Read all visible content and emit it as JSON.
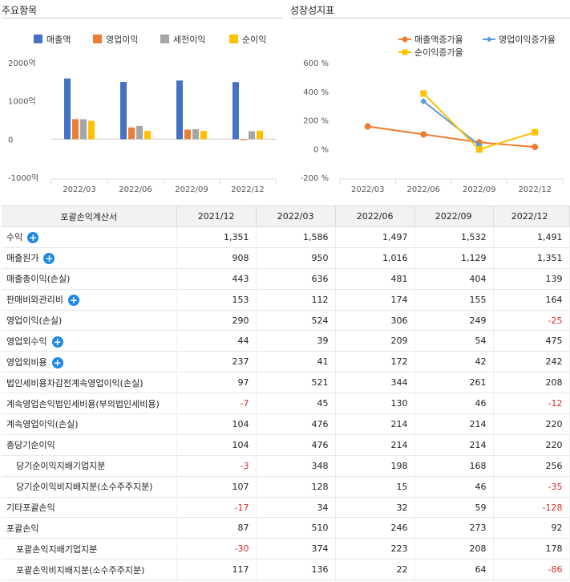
{
  "left_title": "주요항목",
  "right_title": "성장성지표",
  "chart_data": [
    {
      "type": "bar",
      "categories": [
        "2022/03",
        "2022/06",
        "2022/09",
        "2022/12"
      ],
      "series": [
        {
          "name": "매출액",
          "color": "#4472c4",
          "values": [
            1586,
            1497,
            1532,
            1491
          ]
        },
        {
          "name": "영업이익",
          "color": "#ed7d31",
          "values": [
            524,
            306,
            249,
            -25
          ]
        },
        {
          "name": "세전이익",
          "color": "#a5a5a5",
          "values": [
            521,
            344,
            261,
            208
          ]
        },
        {
          "name": "순이익",
          "color": "#ffc000",
          "values": [
            476,
            214,
            214,
            220
          ]
        }
      ],
      "yticks": [
        "2000억",
        "1000억",
        "0",
        "-1000억"
      ],
      "ylim": [
        -1000,
        2000
      ]
    },
    {
      "type": "line",
      "categories": [
        "2022/03",
        "2022/06",
        "2022/09",
        "2022/12"
      ],
      "series": [
        {
          "name": "매출액증가율",
          "color": "#ed7d31",
          "marker": "circle",
          "values": [
            155,
            100,
            45,
            12
          ]
        },
        {
          "name": "영업이익증가율",
          "color": "#5b9bd5",
          "marker": "diamond",
          "values": [
            null,
            330,
            25,
            null
          ]
        },
        {
          "name": "순이익증가율",
          "color": "#ffc000",
          "marker": "square",
          "values": [
            null,
            385,
            -5,
            115
          ]
        }
      ],
      "yticks": [
        "600 %",
        "400 %",
        "200 %",
        "0 %",
        "-200 %"
      ],
      "ylim": [
        -200,
        600
      ]
    }
  ],
  "table": {
    "headers": [
      "포괄손익계산서",
      "2021/12",
      "2022/03",
      "2022/06",
      "2022/09",
      "2022/12"
    ],
    "rows": [
      {
        "label": "수익",
        "expand": true,
        "indent": false,
        "values": [
          "1,351",
          "1,586",
          "1,497",
          "1,532",
          "1,491"
        ]
      },
      {
        "label": "매출원가",
        "expand": true,
        "indent": false,
        "values": [
          "908",
          "950",
          "1,016",
          "1,129",
          "1,351"
        ]
      },
      {
        "label": "매출총이익(손실)",
        "expand": false,
        "indent": false,
        "values": [
          "443",
          "636",
          "481",
          "404",
          "139"
        ]
      },
      {
        "label": "판매비와관리비",
        "expand": true,
        "indent": false,
        "values": [
          "153",
          "112",
          "174",
          "155",
          "164"
        ]
      },
      {
        "label": "영업이익(손실)",
        "expand": false,
        "indent": false,
        "values": [
          "290",
          "524",
          "306",
          "249",
          "-25"
        ]
      },
      {
        "label": "영업외수익",
        "expand": true,
        "indent": false,
        "values": [
          "44",
          "39",
          "209",
          "54",
          "475"
        ]
      },
      {
        "label": "영업외비용",
        "expand": true,
        "indent": false,
        "values": [
          "237",
          "41",
          "172",
          "42",
          "242"
        ]
      },
      {
        "label": "법인세비용차감전계속영업이익(손실)",
        "expand": false,
        "indent": false,
        "values": [
          "97",
          "521",
          "344",
          "261",
          "208"
        ]
      },
      {
        "label": "계속영업손익법인세비용(부의법인세비용)",
        "expand": false,
        "indent": false,
        "values": [
          "-7",
          "45",
          "130",
          "46",
          "-12"
        ]
      },
      {
        "label": "계속영업이익(손실)",
        "expand": false,
        "indent": false,
        "values": [
          "104",
          "476",
          "214",
          "214",
          "220"
        ]
      },
      {
        "label": "총당기순이익",
        "expand": false,
        "indent": false,
        "values": [
          "104",
          "476",
          "214",
          "214",
          "220"
        ]
      },
      {
        "label": "당기순이익지배기업지분",
        "expand": false,
        "indent": true,
        "values": [
          "-3",
          "348",
          "198",
          "168",
          "256"
        ]
      },
      {
        "label": "당기순이익비지배지분(소수주주지분)",
        "expand": false,
        "indent": true,
        "values": [
          "107",
          "128",
          "15",
          "46",
          "-35"
        ]
      },
      {
        "label": "기타포괄손익",
        "expand": false,
        "indent": false,
        "values": [
          "-17",
          "34",
          "32",
          "59",
          "-128"
        ]
      },
      {
        "label": "포괄손익",
        "expand": false,
        "indent": false,
        "values": [
          "87",
          "510",
          "246",
          "273",
          "92"
        ]
      },
      {
        "label": "포괄손익지배기업지분",
        "expand": false,
        "indent": true,
        "values": [
          "-30",
          "374",
          "223",
          "208",
          "178"
        ]
      },
      {
        "label": "포괄손익비지배지분(소수주주지분)",
        "expand": false,
        "indent": true,
        "values": [
          "117",
          "136",
          "22",
          "64",
          "-86"
        ]
      }
    ]
  }
}
